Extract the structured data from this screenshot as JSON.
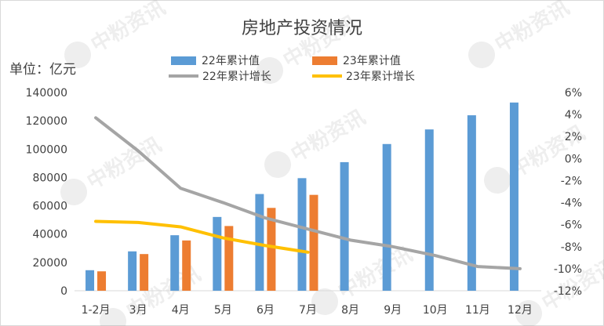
{
  "chart_data": {
    "type": "bar",
    "title": "房地产投资情况",
    "unit_label": "单位：亿元",
    "categories": [
      "1-2月",
      "3月",
      "4月",
      "5月",
      "6月",
      "7月",
      "8月",
      "9月",
      "10月",
      "11月",
      "12月"
    ],
    "y_left": {
      "lim": [
        0,
        140000
      ],
      "ticks": [
        "0",
        "20000",
        "40000",
        "60000",
        "80000",
        "100000",
        "120000",
        "140000"
      ]
    },
    "y_right": {
      "lim": [
        -12,
        6
      ],
      "ticks": [
        "6%",
        "4%",
        "2%",
        "0%",
        "-2%",
        "-4%",
        "-6%",
        "-8%",
        "-10%",
        "-12%"
      ]
    },
    "bar_series": [
      {
        "name": "22年累计值",
        "color": "#5b9bd5",
        "values": [
          14500,
          27800,
          39200,
          52100,
          68300,
          79500,
          90800,
          103600,
          113900,
          123900,
          132900
        ]
      },
      {
        "name": "23年累计值",
        "color": "#ed7d31",
        "values": [
          13700,
          25900,
          35500,
          45700,
          58500,
          67700
        ]
      }
    ],
    "line_series": [
      {
        "name": "22年累计增长",
        "color": "#a5a5a5",
        "axis": "right",
        "values": [
          3.7,
          0.7,
          -2.7,
          -4.0,
          -5.4,
          -6.4,
          -7.4,
          -8.0,
          -8.8,
          -9.8,
          -10.0
        ]
      },
      {
        "name": "23年累计增长",
        "color": "#ffc000",
        "axis": "right",
        "values": [
          -5.7,
          -5.8,
          -6.2,
          -7.2,
          -7.9,
          -8.5
        ]
      }
    ],
    "grid": false,
    "legend_position": "top",
    "watermark": "中粉资讯"
  }
}
